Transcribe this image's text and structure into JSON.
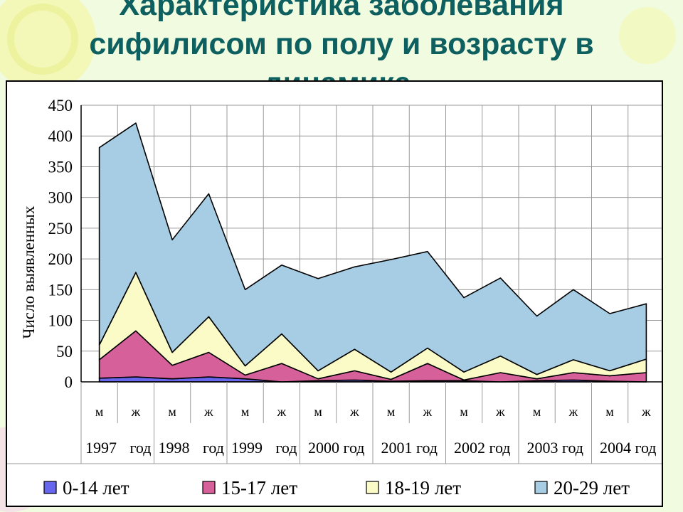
{
  "slide": {
    "title_line1": "Характеристика заболевания",
    "title_line2": "сифилисом по полу и возрасту в",
    "title_line3": "динамике."
  },
  "colors": {
    "background": "#f0fbe0",
    "title": "#0e5f5f",
    "series": [
      "#6666ee",
      "#d6609a",
      "#fbfbc8",
      "#a6cde3"
    ]
  },
  "chart_data": {
    "type": "area",
    "stacked": true,
    "ylabel": "Число выявленных",
    "xlabel": "",
    "ylim": [
      0,
      450
    ],
    "yticks": [
      0,
      50,
      100,
      150,
      200,
      250,
      300,
      350,
      400,
      450
    ],
    "grid": true,
    "legend_position": "bottom",
    "categories": [
      "м",
      "ж",
      "м",
      "ж",
      "м",
      "ж",
      "м",
      "ж",
      "м",
      "ж",
      "м",
      "ж",
      "м",
      "ж",
      "м",
      "ж"
    ],
    "year_labels": [
      "1997 год",
      "1998 год",
      "1999 год",
      "2000 год",
      "2001 год",
      "2002 год",
      "2003 год",
      "2004 год"
    ],
    "year_label_parts": [
      [
        "1997",
        "год"
      ],
      [
        "1998",
        "год"
      ],
      [
        "1999",
        "год"
      ],
      [
        "2000 год"
      ],
      [
        "2001 год"
      ],
      [
        "2002 год"
      ],
      [
        "2003 год"
      ],
      [
        "2004 год"
      ]
    ],
    "series": [
      {
        "name": "0-14 лет",
        "values": [
          6,
          8,
          5,
          8,
          5,
          0,
          2,
          3,
          1,
          2,
          2,
          0,
          2,
          3,
          1,
          0
        ]
      },
      {
        "name": "15-17 лет",
        "values": [
          30,
          75,
          22,
          40,
          6,
          30,
          3,
          15,
          3,
          28,
          1,
          15,
          3,
          12,
          9,
          15
        ]
      },
      {
        "name": "18-19 лет",
        "values": [
          24,
          95,
          21,
          58,
          15,
          48,
          13,
          35,
          12,
          25,
          13,
          27,
          7,
          21,
          8,
          22
        ]
      },
      {
        "name": "20-29 лет",
        "values": [
          321,
          243,
          183,
          200,
          124,
          112,
          150,
          134,
          183,
          157,
          121,
          127,
          95,
          114,
          93,
          90
        ]
      }
    ]
  }
}
